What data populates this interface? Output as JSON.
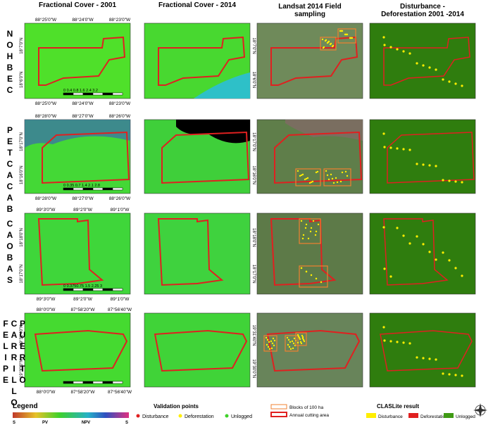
{
  "columns": [
    "Fractional Cover - 2001",
    "Fractional Cover - 2014",
    "Landsat 2014 Field sampling",
    "Disturbance - Deforestation 2001 -2014"
  ],
  "rows": [
    {
      "name": "NOHBEC",
      "top_ticks": [
        "88°25'0\"W",
        "88°24'0\"W",
        "88°23'0\"W"
      ],
      "bottom_ticks": [
        "88°25'0\"W",
        "88°24'0\"W",
        "88°23'0\"W"
      ],
      "lat_ticks": [
        "18°7'0\"N",
        "18°6'0\"N"
      ],
      "scale": "0 0.4 0.8 1.6 2.4 3.2"
    },
    {
      "name": "PETCACAB",
      "top_ticks": [
        "88°28'0\"W",
        "88°27'0\"W",
        "88°26'0\"W"
      ],
      "bottom_ticks": [
        "88°28'0\"W",
        "88°27'0\"W",
        "88°26'0\"W"
      ],
      "lat_ticks": [
        "18°17'0\"N",
        "18°16'0\"N"
      ],
      "scale": "0 0.35 0.7 1.4 2.1 2.8"
    },
    {
      "name": "CAOBAS",
      "top_ticks": [
        "89°3'0\"W",
        "89°2'0\"W",
        "89°1'0\"W"
      ],
      "bottom_ticks": [
        "89°3'0\"W",
        "89°2'0\"W",
        "89°1'0\"W"
      ],
      "lat_ticks": [
        "18°18'0\"N",
        "18°17'0\"N"
      ],
      "scale": "0 0.3750.75 1.5 2.25 3"
    },
    {
      "name": "FELIPE CARRILLO PUERTO",
      "top_ticks": [
        "88°0'0\"W",
        "87°58'20\"W",
        "87°56'40\"W"
      ],
      "bottom_ticks": [
        "88°0'0\"W",
        "87°58'20\"W",
        "87°56'40\"W"
      ],
      "lat_ticks": [
        "19°31'40\"N",
        "19°30'0\"N"
      ]
    }
  ],
  "legend": {
    "title": "Legend",
    "ramp_labels": [
      "S",
      "PV",
      "NPV",
      "S"
    ],
    "validation_title": "Validation points",
    "validation_items": [
      "Disturbance",
      "Deforestation",
      "Unlogged"
    ],
    "blocks": "Blocks of 100 ha",
    "cutting": "Annual cutting area",
    "clas_title": "CLASLite result",
    "clas_items": [
      "Disturbance",
      "Deforestation",
      "Unlogged"
    ]
  }
}
